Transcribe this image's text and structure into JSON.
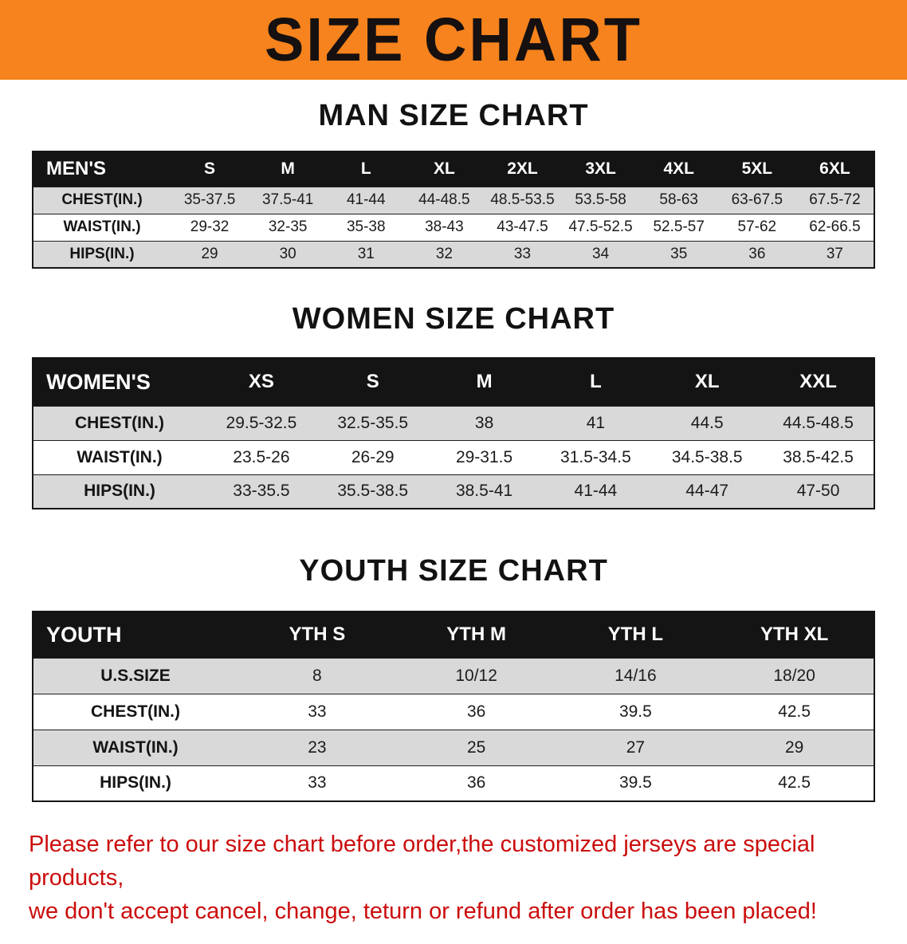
{
  "banner": {
    "title": "SIZE CHART"
  },
  "men": {
    "title": "MAN SIZE CHART",
    "table": {
      "header": [
        "MEN'S",
        "S",
        "M",
        "L",
        "XL",
        "2XL",
        "3XL",
        "4XL",
        "5XL",
        "6XL"
      ],
      "rows": [
        {
          "label": "CHEST(IN.)",
          "values": [
            "35-37.5",
            "37.5-41",
            "41-44",
            "44-48.5",
            "48.5-53.5",
            "53.5-58",
            "58-63",
            "63-67.5",
            "67.5-72"
          ]
        },
        {
          "label": "WAIST(IN.)",
          "values": [
            "29-32",
            "32-35",
            "35-38",
            "38-43",
            "43-47.5",
            "47.5-52.5",
            "52.5-57",
            "57-62",
            "62-66.5"
          ]
        },
        {
          "label": "HIPS(IN.)",
          "values": [
            "29",
            "30",
            "31",
            "32",
            "33",
            "34",
            "35",
            "36",
            "37"
          ]
        }
      ]
    }
  },
  "women": {
    "title": "WOMEN SIZE CHART",
    "table": {
      "header": [
        "WOMEN'S",
        "XS",
        "S",
        "M",
        "L",
        "XL",
        "XXL"
      ],
      "rows": [
        {
          "label": "CHEST(IN.)",
          "values": [
            "29.5-32.5",
            "32.5-35.5",
            "38",
            "41",
            "44.5",
            "44.5-48.5"
          ]
        },
        {
          "label": "WAIST(IN.)",
          "values": [
            "23.5-26",
            "26-29",
            "29-31.5",
            "31.5-34.5",
            "34.5-38.5",
            "38.5-42.5"
          ]
        },
        {
          "label": "HIPS(IN.)",
          "values": [
            "33-35.5",
            "35.5-38.5",
            "38.5-41",
            "41-44",
            "44-47",
            "47-50"
          ]
        }
      ]
    }
  },
  "youth": {
    "title": "YOUTH SIZE CHART",
    "table": {
      "header": [
        "YOUTH",
        "YTH S",
        "YTH M",
        "YTH L",
        "YTH XL"
      ],
      "rows": [
        {
          "label": "U.S.SIZE",
          "values": [
            "8",
            "10/12",
            "14/16",
            "18/20"
          ]
        },
        {
          "label": "CHEST(IN.)",
          "values": [
            "33",
            "36",
            "39.5",
            "42.5"
          ]
        },
        {
          "label": "WAIST(IN.)",
          "values": [
            "23",
            "25",
            "27",
            "29"
          ]
        },
        {
          "label": "HIPS(IN.)",
          "values": [
            "33",
            "36",
            "39.5",
            "42.5"
          ]
        }
      ]
    }
  },
  "footer": {
    "line1": "Please refer to our size chart before order,the customized jerseys are special products,",
    "line2": "we don't accept cancel, change, teturn or refund after order has been placed!"
  },
  "colors": {
    "banner_bg": "#f6831d",
    "table_header_bg": "#141414",
    "row_shade": "#d9d9d9",
    "footer_text": "#cb0d0d"
  }
}
